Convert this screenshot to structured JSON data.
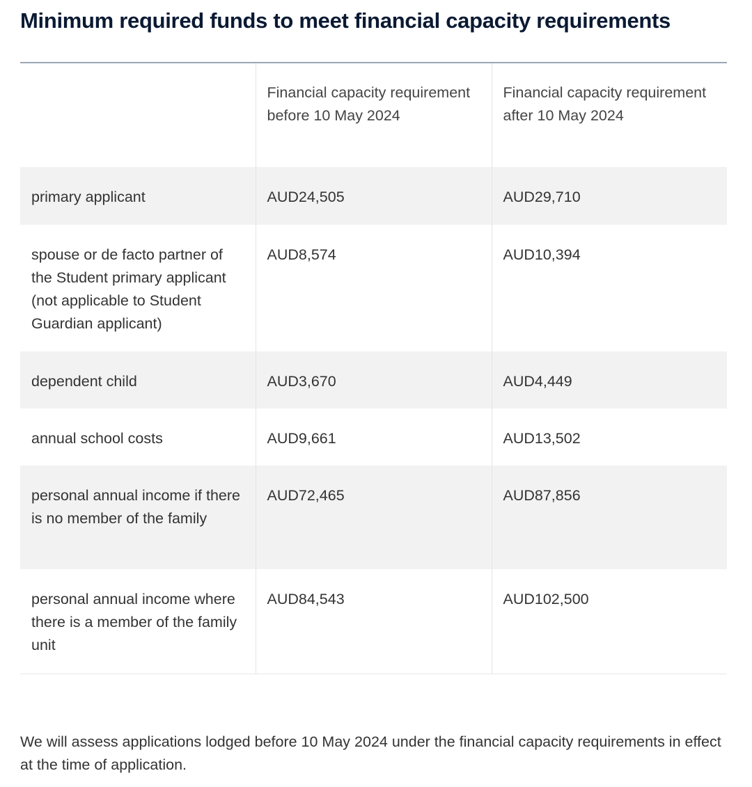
{
  "title": "Minimum required funds to meet financial capacity requirements",
  "table": {
    "headers": [
      "",
      "Financial capacity requirement before 10 May 2024",
      "Financial capacity requirement after 10 May 2024"
    ],
    "rows": [
      [
        "primary applicant",
        "AUD24,505",
        "AUD29,710"
      ],
      [
        "spouse or de facto partner of the Student primary applicant (not applicable to Student Guardian applicant)",
        "AUD8,574",
        "AUD10,394"
      ],
      [
        "dependent child",
        "AUD3,670",
        "AUD4,449"
      ],
      [
        "annual school costs",
        "AUD9,661",
        "AUD13,502"
      ],
      [
        "personal annual income if there is no member of the family",
        "AUD72,465",
        "AUD87,856"
      ],
      [
        "personal annual income where there is a member of the family unit",
        "AUD84,543",
        "AUD102,500"
      ]
    ]
  },
  "note": "We will assess applications lodged before 10 May 2024 under the financial capacity requirements in effect at the time of application."
}
